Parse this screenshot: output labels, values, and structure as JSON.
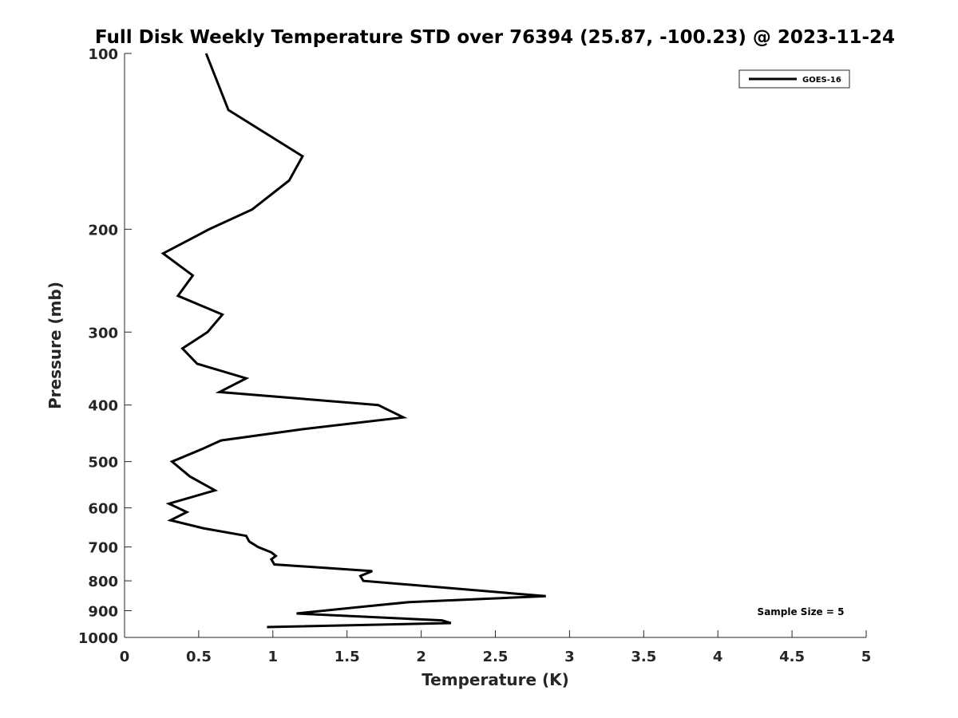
{
  "chart_data": {
    "type": "line",
    "title": "Full Disk Weekly Temperature STD over 76394 (25.87, -100.23) @ 2023-11-24",
    "xlabel": "Temperature (K)",
    "ylabel": "Pressure (mb)",
    "xlim": [
      0,
      5
    ],
    "ylim": [
      100,
      1000
    ],
    "y_scale": "log",
    "y_reversed": true,
    "x_ticks": [
      "0",
      "0.5",
      "1",
      "1.5",
      "2",
      "2.5",
      "3",
      "3.5",
      "4",
      "4.5",
      "5"
    ],
    "y_ticks": [
      "100",
      "200",
      "300",
      "400",
      "500",
      "600",
      "700",
      "800",
      "900",
      "1000"
    ],
    "grid": false,
    "legend": {
      "position": "top-right",
      "entries": [
        "GOES-16"
      ]
    },
    "annotation": "Sample Size = 5",
    "series": [
      {
        "name": "GOES-16",
        "color": "#000000",
        "points": [
          [
            0.55,
            100
          ],
          [
            0.7,
            125
          ],
          [
            1.2,
            150
          ],
          [
            1.11,
            165
          ],
          [
            0.86,
            185
          ],
          [
            0.57,
            200
          ],
          [
            0.26,
            220
          ],
          [
            0.46,
            240
          ],
          [
            0.36,
            260
          ],
          [
            0.66,
            280
          ],
          [
            0.56,
            300
          ],
          [
            0.39,
            320
          ],
          [
            0.49,
            340
          ],
          [
            0.82,
            360
          ],
          [
            0.64,
            380
          ],
          [
            1.71,
            400
          ],
          [
            1.88,
            420
          ],
          [
            1.2,
            440
          ],
          [
            0.65,
            460
          ],
          [
            0.53,
            475
          ],
          [
            0.32,
            500
          ],
          [
            0.44,
            530
          ],
          [
            0.61,
            560
          ],
          [
            0.3,
            590
          ],
          [
            0.42,
            610
          ],
          [
            0.31,
            630
          ],
          [
            0.53,
            650
          ],
          [
            0.82,
            670
          ],
          [
            0.84,
            685
          ],
          [
            0.9,
            700
          ],
          [
            0.99,
            715
          ],
          [
            1.02,
            725
          ],
          [
            0.99,
            735
          ],
          [
            1.01,
            750
          ],
          [
            1.67,
            770
          ],
          [
            1.59,
            785
          ],
          [
            1.61,
            800
          ],
          [
            2.84,
            850
          ],
          [
            1.92,
            870
          ],
          [
            1.62,
            885
          ],
          [
            1.16,
            910
          ],
          [
            2.14,
            935
          ],
          [
            2.2,
            945
          ],
          [
            0.96,
            960
          ]
        ]
      }
    ]
  }
}
